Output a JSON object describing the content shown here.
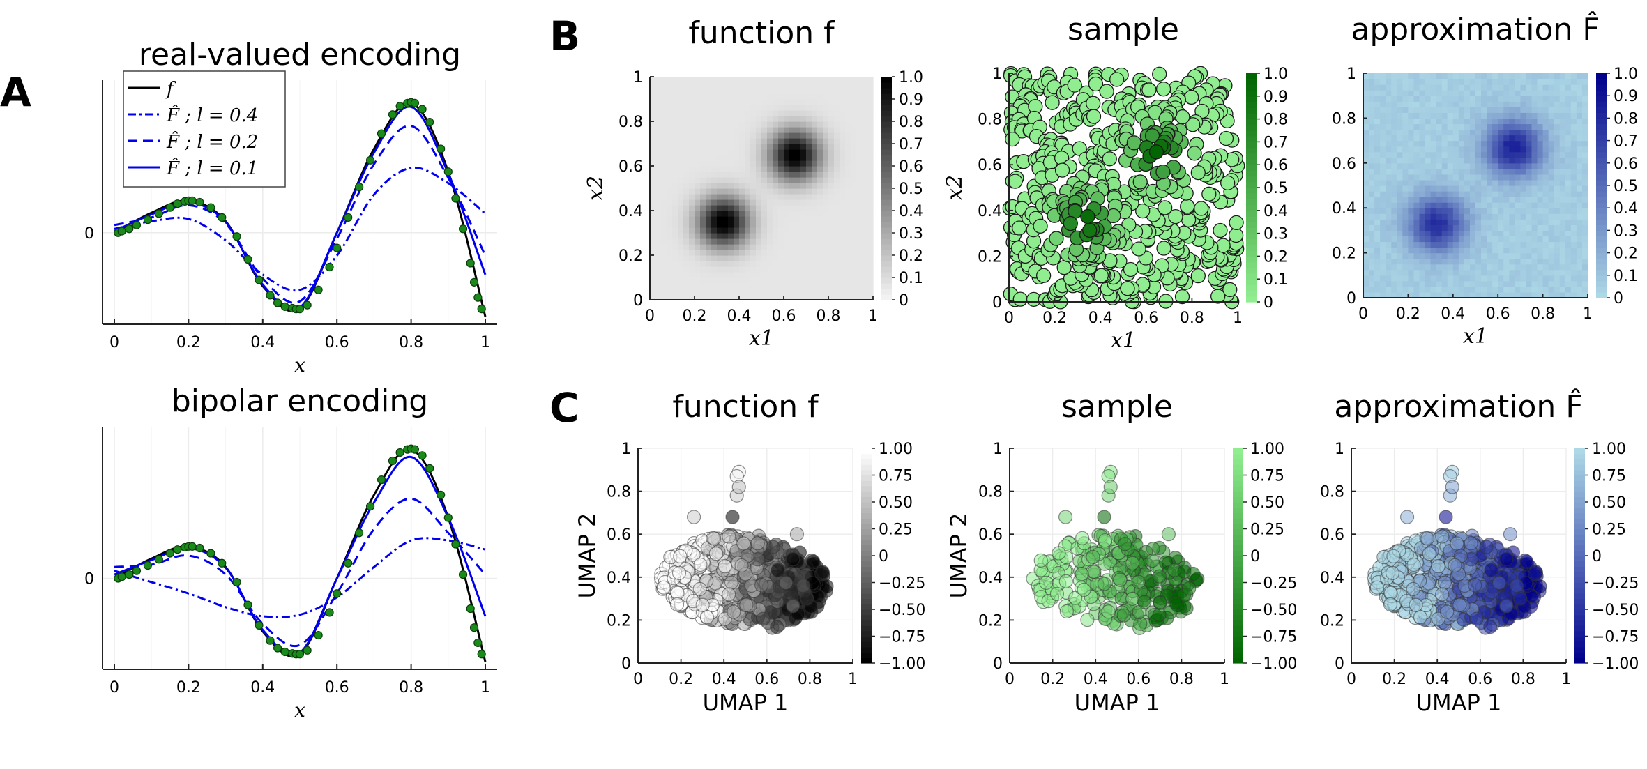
{
  "panels": {
    "a": "A",
    "b": "B",
    "c": "C"
  },
  "colors": {
    "black": "#000000",
    "blue": "#0000ee",
    "green_dot": "#1a8a1a",
    "green_light": "#90ee90",
    "green_dark": "#006400",
    "blue_light": "#add8e6",
    "blue_dark": "#00008b",
    "grid": "#ececec",
    "axis": "#222222"
  },
  "chart_data": [
    {
      "id": "A-top",
      "type": "line",
      "title": "real-valued encoding",
      "xlabel": "x",
      "ylabel": "",
      "xlim": [
        0,
        1
      ],
      "ylim": [
        -1.2,
        2.0
      ],
      "xticks": [
        0,
        0.2,
        0.4,
        0.6,
        0.8,
        1
      ],
      "xtick_labels": [
        "0",
        "0.2",
        "0.4",
        "0.6",
        "0.8",
        "1"
      ],
      "yticks": [
        0
      ],
      "ytick_labels": [
        "0"
      ],
      "grid": true,
      "legend": "top-left",
      "series": [
        {
          "name": "f",
          "style": "solid",
          "color": "#000000",
          "x": [
            0,
            0.1,
            0.2,
            0.3,
            0.4,
            0.5,
            0.6,
            0.7,
            0.8,
            0.9,
            1.0
          ],
          "y": [
            0,
            0.26,
            0.42,
            0.15,
            -0.7,
            -1.0,
            0.0,
            1.1,
            1.7,
            0.8,
            -1.1
          ]
        },
        {
          "name": "F̂ ; l = 0.4",
          "style": "dashdot",
          "color": "#0000ee",
          "x": [
            0,
            0.1,
            0.2,
            0.3,
            0.4,
            0.5,
            0.6,
            0.7,
            0.8,
            0.9,
            1.0
          ],
          "y": [
            0.05,
            0.15,
            0.18,
            -0.1,
            -0.55,
            -0.75,
            -0.3,
            0.5,
            0.85,
            0.65,
            0.25
          ]
        },
        {
          "name": "F̂ ; l = 0.2",
          "style": "dashed",
          "color": "#0000ee",
          "x": [
            0,
            0.1,
            0.2,
            0.3,
            0.4,
            0.5,
            0.6,
            0.7,
            0.8,
            0.9,
            1.0
          ],
          "y": [
            0.1,
            0.2,
            0.36,
            0.12,
            -0.6,
            -0.9,
            -0.08,
            0.9,
            1.4,
            0.72,
            -0.3
          ]
        },
        {
          "name": "F̂ ; l = 0.1",
          "style": "solid",
          "color": "#0000ee",
          "x": [
            0,
            0.1,
            0.2,
            0.3,
            0.4,
            0.5,
            0.6,
            0.7,
            0.8,
            0.9,
            1.0
          ],
          "y": [
            0.02,
            0.24,
            0.4,
            0.14,
            -0.68,
            -0.98,
            0.0,
            1.05,
            1.65,
            0.78,
            -0.55
          ]
        },
        {
          "name": "",
          "style": "points",
          "color": "#1a8a1a",
          "x": [
            0.01,
            0.02,
            0.04,
            0.06,
            0.09,
            0.12,
            0.15,
            0.17,
            0.19,
            0.2,
            0.21,
            0.23,
            0.26,
            0.29,
            0.33,
            0.36,
            0.39,
            0.42,
            0.44,
            0.46,
            0.48,
            0.49,
            0.5,
            0.52,
            0.55,
            0.58,
            0.6,
            0.63,
            0.66,
            0.69,
            0.72,
            0.75,
            0.77,
            0.79,
            0.8,
            0.81,
            0.83,
            0.85,
            0.88,
            0.9,
            0.92,
            0.94,
            0.96,
            0.97,
            0.98,
            0.99
          ],
          "y": [
            0.0,
            0.02,
            0.05,
            0.1,
            0.17,
            0.25,
            0.33,
            0.38,
            0.41,
            0.42,
            0.42,
            0.4,
            0.33,
            0.2,
            -0.05,
            -0.35,
            -0.62,
            -0.82,
            -0.92,
            -0.97,
            -0.99,
            -1.0,
            -1.0,
            -0.95,
            -0.75,
            -0.45,
            -0.2,
            0.2,
            0.6,
            0.95,
            1.3,
            1.55,
            1.66,
            1.7,
            1.71,
            1.7,
            1.62,
            1.45,
            1.1,
            0.8,
            0.45,
            0.05,
            -0.4,
            -0.65,
            -0.85,
            -1.0
          ]
        }
      ]
    },
    {
      "id": "A-bottom",
      "type": "line",
      "title": "bipolar encoding",
      "xlabel": "x",
      "ylabel": "",
      "xlim": [
        0,
        1
      ],
      "ylim": [
        -1.2,
        2.0
      ],
      "xticks": [
        0,
        0.2,
        0.4,
        0.6,
        0.8,
        1
      ],
      "xtick_labels": [
        "0",
        "0.2",
        "0.4",
        "0.6",
        "0.8",
        "1"
      ],
      "yticks": [
        0
      ],
      "ytick_labels": [
        "0"
      ],
      "grid": true,
      "series": [
        {
          "name": "",
          "style": "solid",
          "color": "#000000",
          "x": [
            0,
            0.1,
            0.2,
            0.3,
            0.4,
            0.5,
            0.6,
            0.7,
            0.8,
            0.9,
            1.0
          ],
          "y": [
            0,
            0.26,
            0.42,
            0.15,
            -0.7,
            -1.0,
            0.0,
            1.1,
            1.7,
            0.8,
            -1.1
          ]
        },
        {
          "name": "",
          "style": "dashdot",
          "color": "#0000ee",
          "x": [
            0,
            0.1,
            0.2,
            0.3,
            0.4,
            0.5,
            0.6,
            0.7,
            0.8,
            0.9,
            1.0
          ],
          "y": [
            0.1,
            -0.05,
            -0.2,
            -0.38,
            -0.5,
            -0.48,
            -0.25,
            0.15,
            0.5,
            0.5,
            0.38
          ]
        },
        {
          "name": "",
          "style": "dashed",
          "color": "#0000ee",
          "x": [
            0,
            0.1,
            0.2,
            0.3,
            0.4,
            0.5,
            0.6,
            0.7,
            0.8,
            0.9,
            1.0
          ],
          "y": [
            0.15,
            0.18,
            0.3,
            0.05,
            -0.6,
            -0.88,
            -0.2,
            0.65,
            1.05,
            0.6,
            0.05
          ]
        },
        {
          "name": "",
          "style": "solid",
          "color": "#0000ee",
          "x": [
            0,
            0.1,
            0.2,
            0.3,
            0.4,
            0.5,
            0.6,
            0.7,
            0.8,
            0.9,
            1.0
          ],
          "y": [
            0.05,
            0.24,
            0.4,
            0.14,
            -0.68,
            -0.98,
            0.0,
            1.0,
            1.6,
            0.8,
            -0.5
          ]
        },
        {
          "name": "",
          "style": "points",
          "color": "#1a8a1a",
          "x": [
            0.01,
            0.02,
            0.04,
            0.06,
            0.09,
            0.12,
            0.15,
            0.17,
            0.19,
            0.2,
            0.21,
            0.23,
            0.26,
            0.29,
            0.33,
            0.36,
            0.39,
            0.42,
            0.44,
            0.46,
            0.48,
            0.49,
            0.5,
            0.52,
            0.55,
            0.58,
            0.6,
            0.63,
            0.66,
            0.69,
            0.72,
            0.75,
            0.77,
            0.79,
            0.8,
            0.81,
            0.83,
            0.85,
            0.88,
            0.9,
            0.92,
            0.94,
            0.96,
            0.97,
            0.98,
            0.99
          ],
          "y": [
            0.0,
            0.02,
            0.05,
            0.1,
            0.17,
            0.25,
            0.33,
            0.38,
            0.41,
            0.42,
            0.42,
            0.4,
            0.33,
            0.2,
            -0.05,
            -0.35,
            -0.62,
            -0.82,
            -0.92,
            -0.97,
            -0.99,
            -1.0,
            -1.0,
            -0.95,
            -0.75,
            -0.45,
            -0.2,
            0.2,
            0.6,
            0.95,
            1.3,
            1.55,
            1.66,
            1.7,
            1.71,
            1.7,
            1.62,
            1.45,
            1.1,
            0.8,
            0.45,
            0.05,
            -0.4,
            -0.65,
            -0.85,
            -1.0
          ]
        }
      ]
    },
    {
      "id": "B-function",
      "type": "heatmap",
      "title": "function f",
      "xlabel": "x1",
      "ylabel": "x2",
      "xlim": [
        0,
        1
      ],
      "ylim": [
        0,
        1
      ],
      "ticks": [
        "0",
        "0.2",
        "0.4",
        "0.6",
        "0.8",
        "1"
      ],
      "colorbar": {
        "min": 0,
        "max": 1,
        "ticks": [
          "0",
          "0.1",
          "0.2",
          "0.3",
          "0.4",
          "0.5",
          "0.6",
          "0.7",
          "0.8",
          "0.9",
          "1.0"
        ],
        "colormap": "white-to-black"
      },
      "bumps": [
        {
          "x": 0.33,
          "y": 0.35,
          "width": 0.08,
          "height": 1.0
        },
        {
          "x": 0.65,
          "y": 0.65,
          "width": 0.08,
          "height": 1.0
        }
      ],
      "background": 0.05
    },
    {
      "id": "B-sample",
      "type": "scatter",
      "title": "sample",
      "xlabel": "x1",
      "ylabel": "x2",
      "xlim": [
        0,
        1
      ],
      "ylim": [
        0,
        1
      ],
      "ticks": [
        "0",
        "0.2",
        "0.4",
        "0.6",
        "0.8",
        "1"
      ],
      "colorbar": {
        "min": 0,
        "max": 1,
        "ticks": [
          "0",
          "0.1",
          "0.2",
          "0.3",
          "0.4",
          "0.5",
          "0.6",
          "0.7",
          "0.8",
          "0.9",
          "1.0"
        ],
        "colormap": "lightgreen-to-darkgreen"
      },
      "n_points": 520,
      "seed": 7
    },
    {
      "id": "B-approx",
      "type": "heatmap",
      "title": "approximation F̂",
      "xlabel": "x1",
      "ylabel": "",
      "xlim": [
        0,
        1
      ],
      "ylim": [
        0,
        1
      ],
      "ticks": [
        "0",
        "0.2",
        "0.4",
        "0.6",
        "0.8",
        "1"
      ],
      "colorbar": {
        "min": 0,
        "max": 1,
        "ticks": [
          "0",
          "0.1",
          "0.2",
          "0.3",
          "0.4",
          "0.5",
          "0.6",
          "0.7",
          "0.8",
          "0.9",
          "1.0"
        ],
        "colormap": "lightblue-to-darkblue"
      },
      "bumps": [
        {
          "x": 0.33,
          "y": 0.33,
          "width": 0.09,
          "height": 0.75
        },
        {
          "x": 0.67,
          "y": 0.67,
          "width": 0.09,
          "height": 0.8
        }
      ],
      "background": 0.05
    },
    {
      "id": "C-function",
      "type": "scatter",
      "title": "function f",
      "xlabel": "UMAP 1",
      "ylabel": "UMAP 2",
      "xlim": [
        0,
        1
      ],
      "ylim": [
        0,
        1
      ],
      "ticks": [
        "0",
        "0.2",
        "0.4",
        "0.6",
        "0.8",
        "1"
      ],
      "colorbar": {
        "min": -1,
        "max": 1,
        "ticks": [
          "−1.00",
          "−0.75",
          "−0.50",
          "−0.25",
          "0",
          "0.25",
          "0.50",
          "0.75",
          "1.00"
        ],
        "colormap": "black-to-white"
      },
      "n_points": 700,
      "seed": 11
    },
    {
      "id": "C-sample",
      "type": "scatter",
      "title": "sample",
      "xlabel": "UMAP 1",
      "ylabel": "UMAP 2",
      "xlim": [
        0,
        1
      ],
      "ylim": [
        0,
        1
      ],
      "ticks": [
        "0",
        "0.2",
        "0.4",
        "0.6",
        "0.8",
        "1"
      ],
      "colorbar": {
        "min": -1,
        "max": 1,
        "ticks": [
          "−1.00",
          "−0.75",
          "−0.50",
          "−0.25",
          "0",
          "0.25",
          "0.50",
          "0.75",
          "1.00"
        ],
        "colormap": "darkgreen-to-lightgreen"
      },
      "n_points": 260,
      "seed": 13
    },
    {
      "id": "C-approx",
      "type": "scatter",
      "title": "approximation F̂",
      "xlabel": "UMAP 1",
      "ylabel": "",
      "xlim": [
        0,
        1
      ],
      "ylim": [
        0,
        1
      ],
      "ticks": [
        "0",
        "0.2",
        "0.4",
        "0.6",
        "0.8",
        "1"
      ],
      "colorbar": {
        "min": -1,
        "max": 1,
        "ticks": [
          "−1.00",
          "−0.75",
          "−0.50",
          "−0.25",
          "0",
          "0.25",
          "0.50",
          "0.75",
          "1.00"
        ],
        "colormap": "darkblue-to-lightblue"
      },
      "n_points": 700,
      "seed": 11
    }
  ]
}
